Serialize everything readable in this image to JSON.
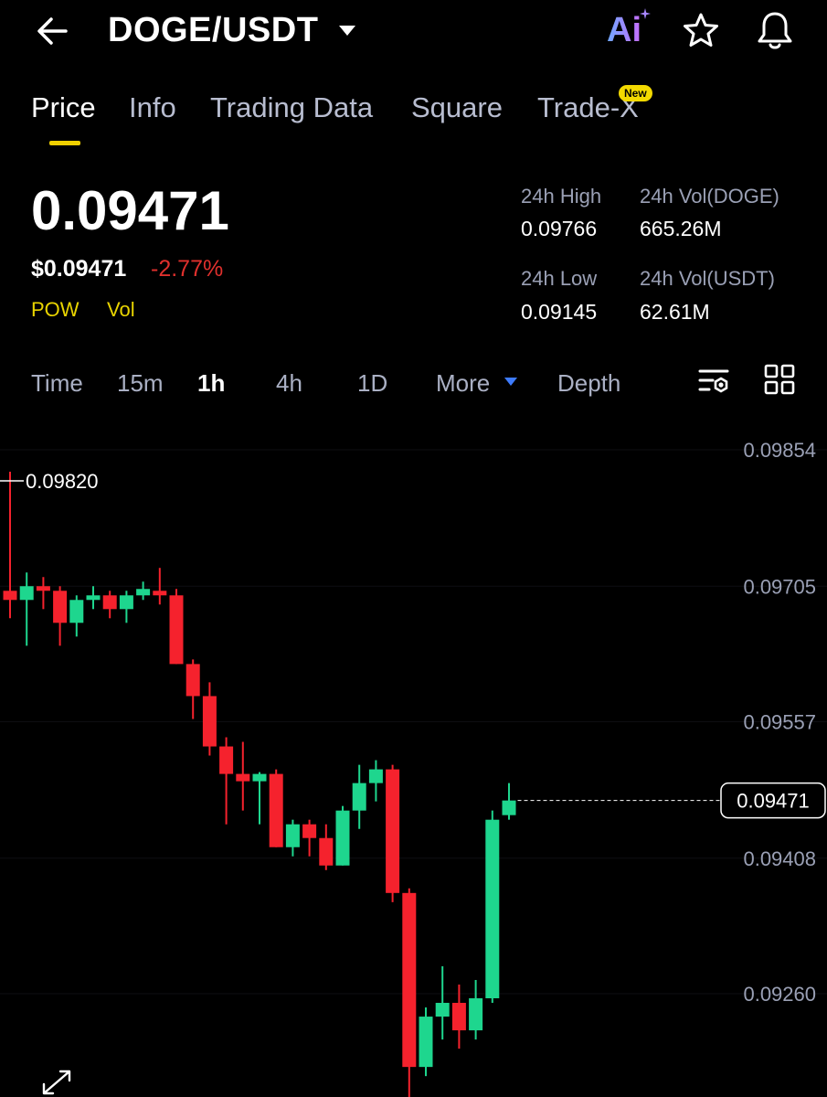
{
  "header": {
    "pair": "DOGE/USDT",
    "ai_label": "Ai",
    "icons": [
      "back-arrow-icon",
      "caret-down-icon",
      "ai-icon",
      "star-icon",
      "bell-icon"
    ]
  },
  "tabs": [
    {
      "label": "Price",
      "active": true
    },
    {
      "label": "Info"
    },
    {
      "label": "Trading Data"
    },
    {
      "label": "Square"
    },
    {
      "label": "Trade-X",
      "badge": "New"
    }
  ],
  "price": {
    "last": "0.09471",
    "usd": "$0.09471",
    "change": "-2.77%",
    "indicators": [
      "POW",
      "Vol"
    ]
  },
  "stats": {
    "high_label": "24h High",
    "high": "0.09766",
    "vol_doge_label": "24h Vol(DOGE)",
    "vol_doge": "665.26M",
    "low_label": "24h Low",
    "low": "0.09145",
    "vol_usdt_label": "24h Vol(USDT)",
    "vol_usdt": "62.61M"
  },
  "timeframes": {
    "items": [
      "Time",
      "15m",
      "1h",
      "4h",
      "1D",
      "More",
      "Depth"
    ],
    "active": "1h"
  },
  "colors": {
    "up": "#1ed68e",
    "down": "#f5222d",
    "accent": "#f0d000"
  },
  "chart_data": {
    "type": "candlestick",
    "y_ticks": [
      "0.09854",
      "0.09705",
      "0.09557",
      "0.09408",
      "0.09260"
    ],
    "ylim": [
      0.0915,
      0.0989
    ],
    "high_marker": "0.09820",
    "current_price_label": "0.09471",
    "candles": [
      {
        "o": 0.097,
        "h": 0.0983,
        "l": 0.0967,
        "c": 0.0969
      },
      {
        "o": 0.0969,
        "h": 0.0972,
        "l": 0.0964,
        "c": 0.09705
      },
      {
        "o": 0.09705,
        "h": 0.09715,
        "l": 0.0968,
        "c": 0.097
      },
      {
        "o": 0.097,
        "h": 0.09705,
        "l": 0.0964,
        "c": 0.09665
      },
      {
        "o": 0.09665,
        "h": 0.09695,
        "l": 0.0965,
        "c": 0.0969
      },
      {
        "o": 0.0969,
        "h": 0.09705,
        "l": 0.0968,
        "c": 0.09695
      },
      {
        "o": 0.09695,
        "h": 0.097,
        "l": 0.0967,
        "c": 0.0968
      },
      {
        "o": 0.0968,
        "h": 0.097,
        "l": 0.09665,
        "c": 0.09695
      },
      {
        "o": 0.09695,
        "h": 0.0971,
        "l": 0.0969,
        "c": 0.09702
      },
      {
        "o": 0.097,
        "h": 0.09725,
        "l": 0.09685,
        "c": 0.09695
      },
      {
        "o": 0.09695,
        "h": 0.09702,
        "l": 0.0962,
        "c": 0.0962
      },
      {
        "o": 0.0962,
        "h": 0.09625,
        "l": 0.0956,
        "c": 0.09585
      },
      {
        "o": 0.09585,
        "h": 0.096,
        "l": 0.0952,
        "c": 0.0953
      },
      {
        "o": 0.0953,
        "h": 0.0954,
        "l": 0.09445,
        "c": 0.095
      },
      {
        "o": 0.095,
        "h": 0.09535,
        "l": 0.0946,
        "c": 0.09492
      },
      {
        "o": 0.09492,
        "h": 0.09502,
        "l": 0.09445,
        "c": 0.095
      },
      {
        "o": 0.095,
        "h": 0.09505,
        "l": 0.0942,
        "c": 0.0942
      },
      {
        "o": 0.0942,
        "h": 0.0945,
        "l": 0.0941,
        "c": 0.09445
      },
      {
        "o": 0.09445,
        "h": 0.0945,
        "l": 0.0941,
        "c": 0.0943
      },
      {
        "o": 0.0943,
        "h": 0.09445,
        "l": 0.09395,
        "c": 0.094
      },
      {
        "o": 0.094,
        "h": 0.09465,
        "l": 0.094,
        "c": 0.0946
      },
      {
        "o": 0.0946,
        "h": 0.0951,
        "l": 0.0944,
        "c": 0.0949
      },
      {
        "o": 0.0949,
        "h": 0.09515,
        "l": 0.0947,
        "c": 0.09505
      },
      {
        "o": 0.09505,
        "h": 0.0951,
        "l": 0.0936,
        "c": 0.0937
      },
      {
        "o": 0.0937,
        "h": 0.09375,
        "l": 0.0914,
        "c": 0.0918
      },
      {
        "o": 0.0918,
        "h": 0.09245,
        "l": 0.0917,
        "c": 0.09235
      },
      {
        "o": 0.09235,
        "h": 0.0929,
        "l": 0.0921,
        "c": 0.0925
      },
      {
        "o": 0.0925,
        "h": 0.0927,
        "l": 0.092,
        "c": 0.0922
      },
      {
        "o": 0.0922,
        "h": 0.09275,
        "l": 0.0921,
        "c": 0.09255
      },
      {
        "o": 0.09255,
        "h": 0.0946,
        "l": 0.0925,
        "c": 0.0945
      },
      {
        "o": 0.09455,
        "h": 0.0949,
        "l": 0.0945,
        "c": 0.09471
      }
    ]
  }
}
